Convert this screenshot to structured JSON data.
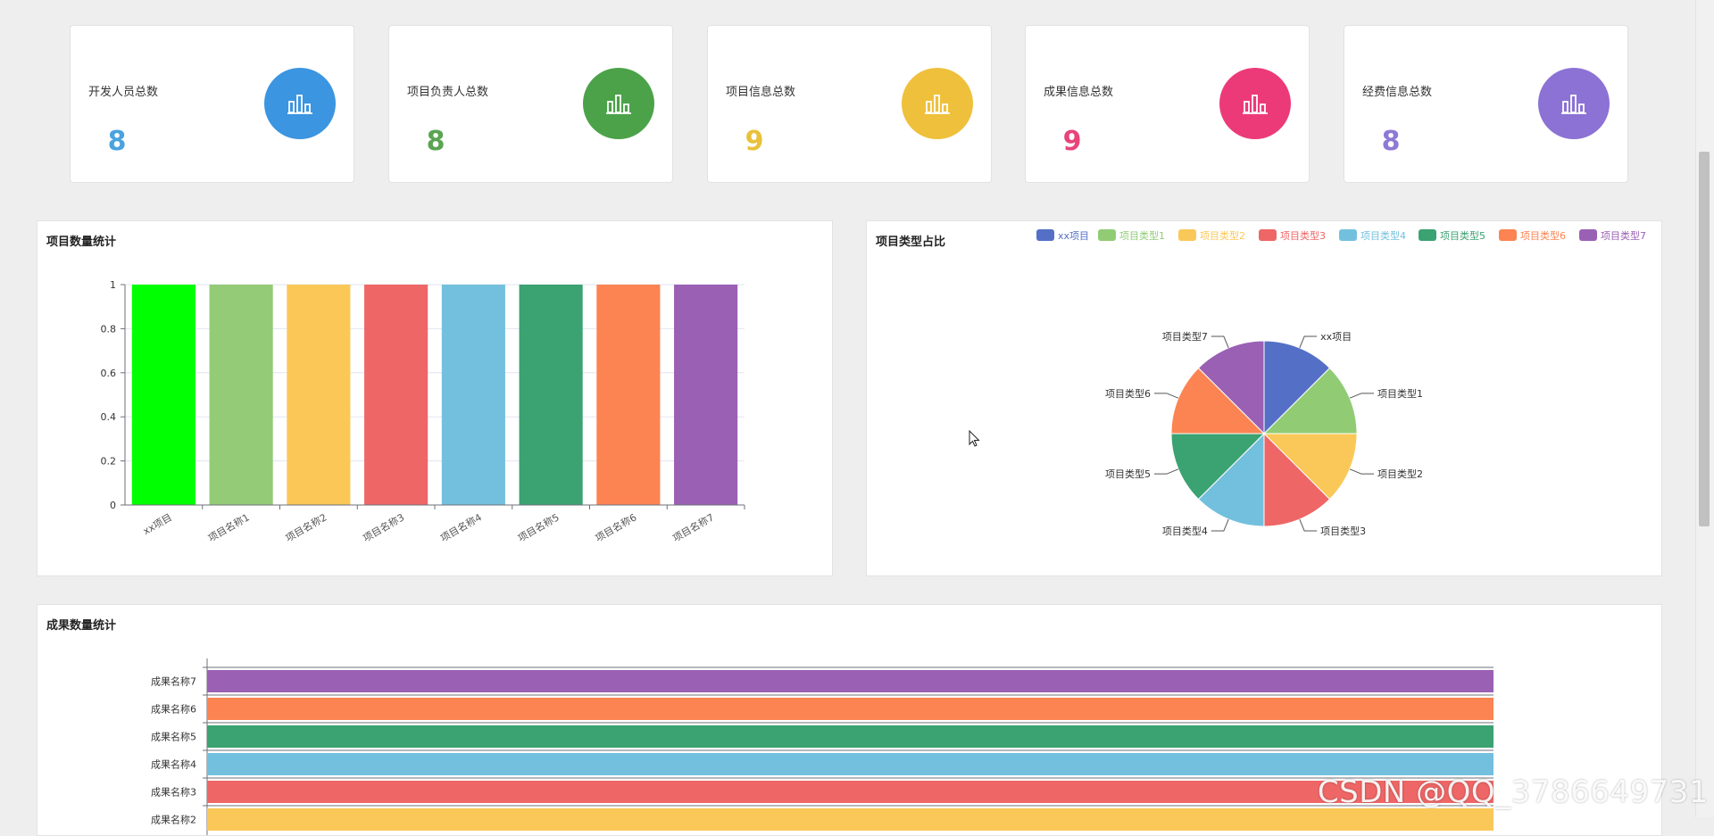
{
  "stats": [
    {
      "label": "开发人员总数",
      "value": "8",
      "color": "#4aa3df",
      "circle": "#3b95e0",
      "icon": "bar-chart-icon"
    },
    {
      "label": "项目负责人总数",
      "value": "8",
      "color": "#5aa452",
      "circle": "#4ca249",
      "icon": "bar-chart-icon"
    },
    {
      "label": "项目信息总数",
      "value": "9",
      "color": "#e9c13a",
      "circle": "#efc03b",
      "icon": "bar-chart-icon"
    },
    {
      "label": "成果信息总数",
      "value": "9",
      "color": "#e8447a",
      "circle": "#ec3a78",
      "icon": "bar-chart-icon"
    },
    {
      "label": "经费信息总数",
      "value": "8",
      "color": "#8d7ad6",
      "circle": "#8b72d4",
      "icon": "bar-chart-icon"
    }
  ],
  "panels": {
    "project_count_title": "项目数量统计",
    "project_type_title": "项目类型占比",
    "achievement_count_title": "成果数量统计"
  },
  "watermark": "CSDN @QQ_3786649731",
  "chart_data": [
    {
      "type": "bar",
      "title": "项目数量统计",
      "categories": [
        "xx项目",
        "项目名称1",
        "项目名称2",
        "项目名称3",
        "项目名称4",
        "项目名称5",
        "项目名称6",
        "项目名称7"
      ],
      "values": [
        1,
        1,
        1,
        1,
        1,
        1,
        1,
        1
      ],
      "colors": [
        "#00ff00",
        "#93cb77",
        "#fbc858",
        "#ee6666",
        "#73c0de",
        "#3ba272",
        "#fc8452",
        "#9a60b4"
      ],
      "ylim": [
        0,
        1
      ],
      "yticks": [
        "0",
        "0.2",
        "0.4",
        "0.6",
        "0.8",
        "1"
      ],
      "grid": true
    },
    {
      "type": "pie",
      "title": "项目类型占比",
      "labels": [
        "xx项目",
        "项目类型1",
        "项目类型2",
        "项目类型3",
        "项目类型4",
        "项目类型5",
        "项目类型6",
        "项目类型7"
      ],
      "values": [
        1,
        1,
        1,
        1,
        1,
        1,
        1,
        1
      ],
      "colors": [
        "#5470c6",
        "#91cc75",
        "#fac858",
        "#ee6666",
        "#73c0de",
        "#3ba272",
        "#fc8452",
        "#9a60b4"
      ],
      "legend": "top-right"
    },
    {
      "type": "bar",
      "orientation": "horizontal",
      "title": "成果数量统计",
      "categories": [
        "成果名称7",
        "成果名称6",
        "成果名称5",
        "成果名称4",
        "成果名称3",
        "成果名称2"
      ],
      "values": [
        1,
        1,
        1,
        1,
        1,
        1
      ],
      "colors": [
        "#9a60b4",
        "#fc8452",
        "#3ba272",
        "#73c0de",
        "#ee6666",
        "#fac858"
      ]
    }
  ]
}
